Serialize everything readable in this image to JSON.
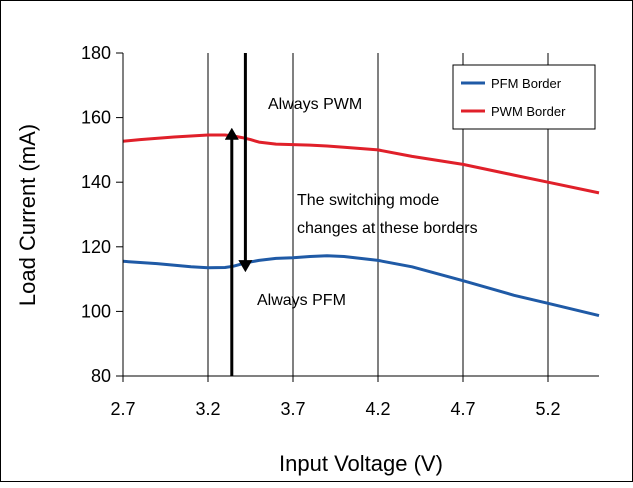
{
  "chart_data": {
    "type": "line",
    "xlabel": "Input Voltage (V)",
    "ylabel": "Load Current (mA)",
    "xlim": [
      2.7,
      5.5
    ],
    "ylim": [
      80,
      180
    ],
    "xticks": [
      2.7,
      3.2,
      3.7,
      4.2,
      4.7,
      5.2
    ],
    "xtick_labels": [
      "2.7",
      "3.2",
      "3.7",
      "4.2",
      "4.7",
      "5.2"
    ],
    "yticks": [
      80,
      100,
      120,
      140,
      160,
      180
    ],
    "ytick_labels": [
      "80",
      "100",
      "120",
      "140",
      "160",
      "180"
    ],
    "grid": "vertical",
    "legend_position": "top-right",
    "series": [
      {
        "name": "PFM Border",
        "color": "#1f5aa6",
        "x": [
          2.7,
          2.9,
          3.1,
          3.2,
          3.3,
          3.35,
          3.42,
          3.5,
          3.6,
          3.7,
          3.8,
          3.9,
          4.0,
          4.2,
          4.4,
          4.7,
          5.0,
          5.2,
          5.5
        ],
        "y": [
          115.5,
          114.8,
          113.8,
          113.5,
          113.6,
          114.0,
          115.0,
          115.8,
          116.4,
          116.6,
          117.0,
          117.2,
          117.0,
          115.8,
          113.8,
          109.5,
          105.0,
          102.5,
          98.7
        ]
      },
      {
        "name": "PWM Border",
        "color": "#e0202a",
        "x": [
          2.7,
          2.8,
          3.0,
          3.2,
          3.3,
          3.35,
          3.4,
          3.45,
          3.5,
          3.6,
          3.8,
          3.9,
          4.0,
          4.2,
          4.4,
          4.7,
          5.0,
          5.2,
          5.5
        ],
        "y": [
          152.7,
          153.2,
          154.0,
          154.6,
          154.6,
          154.3,
          153.8,
          153.2,
          152.4,
          151.8,
          151.5,
          151.2,
          150.8,
          150.0,
          148.0,
          145.5,
          142.2,
          140.0,
          136.7
        ]
      }
    ],
    "annotations": [
      {
        "text": "Always PWM"
      },
      {
        "text": "The switching mode"
      },
      {
        "text": "changes at these borders"
      },
      {
        "text": "Always PFM"
      }
    ],
    "arrows": [
      {
        "x": 3.34,
        "from_y": 80,
        "to_y": 155,
        "direction": "up"
      },
      {
        "x": 3.42,
        "from_y": 180,
        "to_y": 114,
        "direction": "down"
      }
    ]
  }
}
